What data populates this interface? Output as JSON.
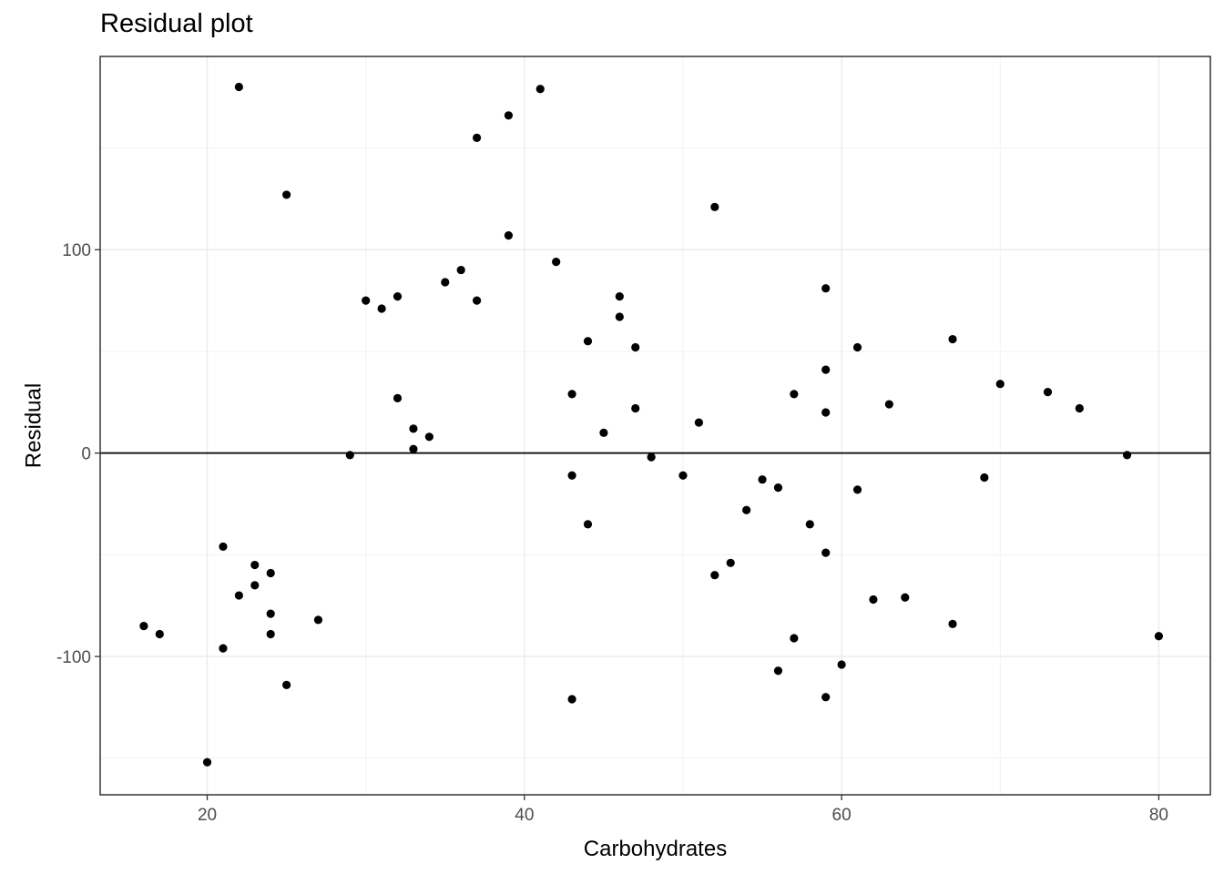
{
  "chart_data": {
    "type": "scatter",
    "title": "Residual plot",
    "xlabel": "Carbohydrates",
    "ylabel": "Residual",
    "xlim": [
      13.25,
      83.25
    ],
    "ylim": [
      -168,
      195
    ],
    "x_ticks": [
      20,
      40,
      60,
      80
    ],
    "y_ticks": [
      -100,
      0,
      100
    ],
    "grid": true,
    "reference_line_y": 0,
    "point_color": "#000000",
    "points": [
      {
        "x": 16,
        "y": -85
      },
      {
        "x": 17,
        "y": -89
      },
      {
        "x": 20,
        "y": -152
      },
      {
        "x": 21,
        "y": -46
      },
      {
        "x": 21,
        "y": -96
      },
      {
        "x": 22,
        "y": 180
      },
      {
        "x": 22,
        "y": -70
      },
      {
        "x": 23,
        "y": -55
      },
      {
        "x": 23,
        "y": -65
      },
      {
        "x": 24,
        "y": -59
      },
      {
        "x": 24,
        "y": -79
      },
      {
        "x": 24,
        "y": -89
      },
      {
        "x": 25,
        "y": 127
      },
      {
        "x": 25,
        "y": -114
      },
      {
        "x": 27,
        "y": -82
      },
      {
        "x": 29,
        "y": -1
      },
      {
        "x": 30,
        "y": 75
      },
      {
        "x": 31,
        "y": 71
      },
      {
        "x": 32,
        "y": 77
      },
      {
        "x": 32,
        "y": 27
      },
      {
        "x": 33,
        "y": 12
      },
      {
        "x": 33,
        "y": 2
      },
      {
        "x": 34,
        "y": 8
      },
      {
        "x": 35,
        "y": 84
      },
      {
        "x": 36,
        "y": 90
      },
      {
        "x": 37,
        "y": 155
      },
      {
        "x": 37,
        "y": 75
      },
      {
        "x": 39,
        "y": 166
      },
      {
        "x": 39,
        "y": 107
      },
      {
        "x": 41,
        "y": 179
      },
      {
        "x": 42,
        "y": 94
      },
      {
        "x": 43,
        "y": 29
      },
      {
        "x": 43,
        "y": -11
      },
      {
        "x": 43,
        "y": -121
      },
      {
        "x": 44,
        "y": 55
      },
      {
        "x": 44,
        "y": -35
      },
      {
        "x": 45,
        "y": 10
      },
      {
        "x": 46,
        "y": 77
      },
      {
        "x": 46,
        "y": 67
      },
      {
        "x": 47,
        "y": 52
      },
      {
        "x": 47,
        "y": 22
      },
      {
        "x": 48,
        "y": -2
      },
      {
        "x": 50,
        "y": -11
      },
      {
        "x": 51,
        "y": 15
      },
      {
        "x": 52,
        "y": 121
      },
      {
        "x": 52,
        "y": -60
      },
      {
        "x": 53,
        "y": -54
      },
      {
        "x": 54,
        "y": -28
      },
      {
        "x": 55,
        "y": -13
      },
      {
        "x": 56,
        "y": -17
      },
      {
        "x": 56,
        "y": -107
      },
      {
        "x": 57,
        "y": 29
      },
      {
        "x": 57,
        "y": -91
      },
      {
        "x": 58,
        "y": -35
      },
      {
        "x": 59,
        "y": 81
      },
      {
        "x": 59,
        "y": 41
      },
      {
        "x": 59,
        "y": 20
      },
      {
        "x": 59,
        "y": -49
      },
      {
        "x": 59,
        "y": -120
      },
      {
        "x": 60,
        "y": -104
      },
      {
        "x": 61,
        "y": 52
      },
      {
        "x": 61,
        "y": -18
      },
      {
        "x": 62,
        "y": -72
      },
      {
        "x": 63,
        "y": 24
      },
      {
        "x": 64,
        "y": -71
      },
      {
        "x": 67,
        "y": 56
      },
      {
        "x": 67,
        "y": -84
      },
      {
        "x": 69,
        "y": -12
      },
      {
        "x": 70,
        "y": 34
      },
      {
        "x": 73,
        "y": 30
      },
      {
        "x": 75,
        "y": 22
      },
      {
        "x": 78,
        "y": -1
      },
      {
        "x": 80,
        "y": -90
      }
    ]
  }
}
